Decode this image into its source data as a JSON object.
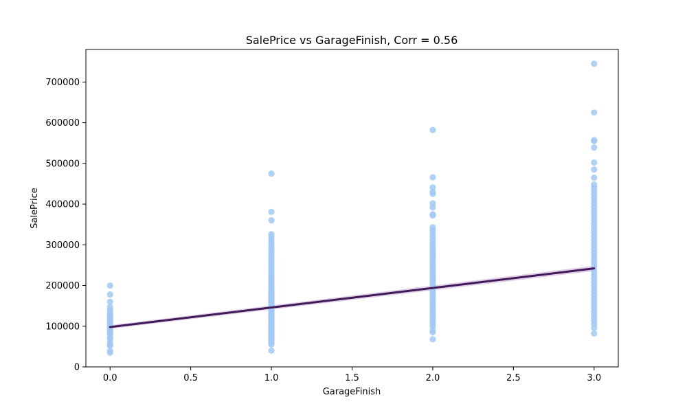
{
  "chart_data": {
    "type": "scatter",
    "title": "SalePrice vs GarageFinish, Corr = 0.56",
    "xlabel": "GarageFinish",
    "ylabel": "SalePrice",
    "xlim": [
      -0.15,
      3.15
    ],
    "ylim": [
      0,
      780000
    ],
    "x_ticks": [
      0.0,
      0.5,
      1.0,
      1.5,
      2.0,
      2.5,
      3.0
    ],
    "x_tick_labels": [
      "0.0",
      "0.5",
      "1.0",
      "1.5",
      "2.0",
      "2.5",
      "3.0"
    ],
    "y_ticks": [
      0,
      100000,
      200000,
      300000,
      400000,
      500000,
      600000,
      700000
    ],
    "y_tick_labels": [
      "0",
      "100000",
      "200000",
      "300000",
      "400000",
      "500000",
      "600000",
      "700000"
    ],
    "grid": false,
    "series": [
      {
        "type": "scatter",
        "points": {
          "0": [
            35000,
            39000,
            52000,
            55000,
            60000,
            68000,
            72000,
            80000,
            84000,
            88000,
            92000,
            95000,
            98000,
            100000,
            103000,
            107000,
            110000,
            114000,
            118000,
            122000,
            126000,
            130000,
            135000,
            140000,
            147000,
            160000,
            178000,
            200000
          ],
          "1": [
            40000,
            55000,
            58000,
            62000,
            66000,
            70000,
            73000,
            76000,
            79000,
            82000,
            85000,
            88000,
            91000,
            94000,
            97000,
            100000,
            103000,
            106000,
            109000,
            112000,
            115000,
            118000,
            121000,
            124000,
            127000,
            130000,
            133000,
            136000,
            139000,
            142000,
            145000,
            148000,
            151000,
            154000,
            157000,
            160000,
            163000,
            166000,
            169000,
            172000,
            175000,
            178000,
            182000,
            186000,
            190000,
            194000,
            198000,
            203000,
            208000,
            213000,
            218000,
            223000,
            228000,
            234000,
            240000,
            246000,
            252000,
            258000,
            264000,
            270000,
            277000,
            284000,
            291000,
            298000,
            305000,
            313000,
            320000,
            326000,
            360000,
            381000,
            475000
          ],
          "2": [
            68000,
            85000,
            90000,
            100000,
            106000,
            112000,
            118000,
            124000,
            130000,
            136000,
            142000,
            148000,
            154000,
            160000,
            166000,
            172000,
            178000,
            184000,
            190000,
            196000,
            202000,
            208000,
            214000,
            220000,
            226000,
            232000,
            238000,
            244000,
            250000,
            256000,
            262000,
            268000,
            274000,
            280000,
            286000,
            292000,
            298000,
            305000,
            312000,
            320000,
            328000,
            336000,
            343000,
            372000,
            375000,
            392000,
            402000,
            425000,
            430000,
            441000,
            466000,
            582000
          ],
          "3": [
            82000,
            96000,
            105000,
            113000,
            121000,
            129000,
            137000,
            145000,
            153000,
            161000,
            169000,
            177000,
            185000,
            193000,
            201000,
            209000,
            217000,
            225000,
            233000,
            241000,
            249000,
            257000,
            265000,
            273000,
            281000,
            289000,
            297000,
            305000,
            313000,
            321000,
            329000,
            337000,
            345000,
            353000,
            361000,
            369000,
            377000,
            385000,
            393000,
            401000,
            409000,
            417000,
            425000,
            433000,
            441000,
            448000,
            465000,
            485000,
            502000,
            539000,
            555000,
            557000,
            625000,
            745000
          ]
        },
        "color": "#a1c9f4"
      },
      {
        "type": "regression_line",
        "x": [
          0,
          3
        ],
        "y": [
          98000,
          242000
        ],
        "ci_halfwidth": [
          4500,
          6500
        ],
        "color": "#3f1a56",
        "band_color": "#c7a6d3"
      }
    ]
  }
}
